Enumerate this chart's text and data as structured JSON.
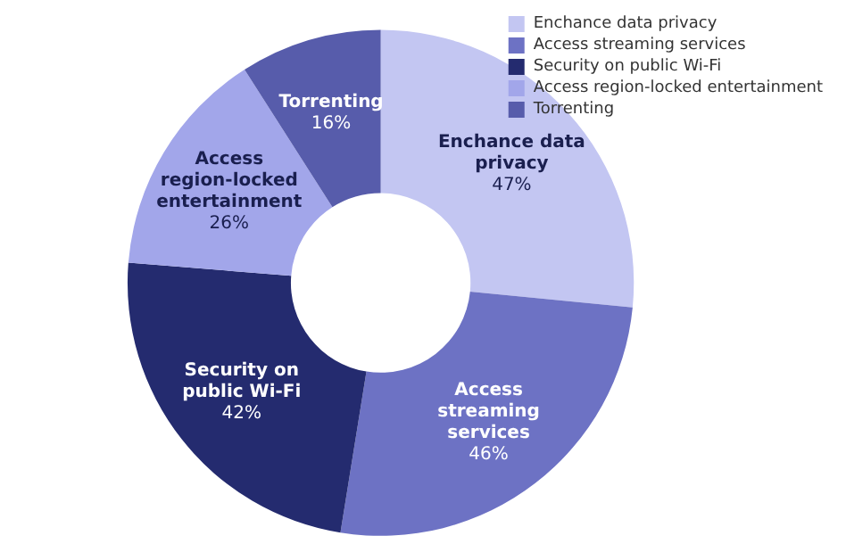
{
  "chart_data": {
    "type": "donut",
    "categories": [
      "Enchance data privacy",
      "Access streaming services",
      "Security on public Wi-Fi",
      "Access region-locked entertainment",
      "Torrenting"
    ],
    "values": [
      47,
      46,
      42,
      26,
      16
    ],
    "value_labels": [
      "47%",
      "46%",
      "42%",
      "26%",
      "16%"
    ],
    "colors": [
      "#c3c6f2",
      "#6d72c4",
      "#242b6f",
      "#a2a6ea",
      "#575cab"
    ],
    "legend": "top right"
  }
}
